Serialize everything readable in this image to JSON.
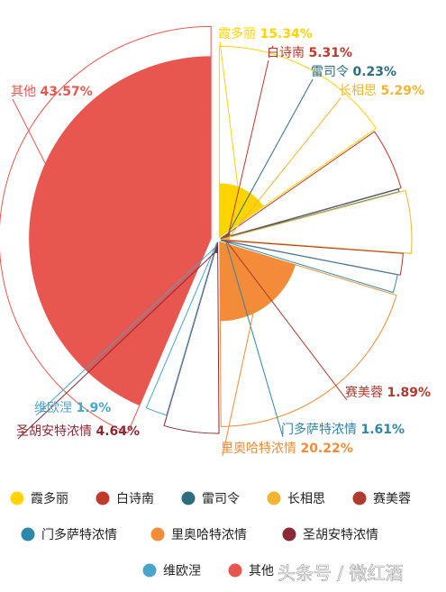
{
  "chart_data": {
    "type": "pie",
    "variant": "rose-with-exploded-outlines",
    "series": [
      {
        "name": "霞多丽",
        "label": "霞多丽",
        "pct_text": "15.34%",
        "value": 15.34,
        "color": "#FFD400"
      },
      {
        "name": "白诗南",
        "label": "白诗南",
        "pct_text": "5.31%",
        "value": 5.31,
        "color": "#C0392B"
      },
      {
        "name": "雷司令",
        "label": "雷司令",
        "pct_text": "0.23%",
        "value": 0.23,
        "color": "#2C6E80"
      },
      {
        "name": "长相思",
        "label": "长相思",
        "pct_text": "5.29%",
        "value": 5.29,
        "color": "#F2B531"
      },
      {
        "name": "赛美蓉",
        "label": "赛美蓉",
        "pct_text": "1.89%",
        "value": 1.89,
        "color": "#B03A2E"
      },
      {
        "name": "门多萨特浓情",
        "label": "门多萨特浓情",
        "pct_text": "1.61%",
        "value": 1.61,
        "color": "#2E86A8"
      },
      {
        "name": "里奥哈特浓情",
        "label": "里奥哈特浓情",
        "pct_text": "20.22%",
        "value": 20.22,
        "color": "#F28C38"
      },
      {
        "name": "圣胡安特浓情",
        "label": "圣胡安特浓情",
        "pct_text": "4.64%",
        "value": 4.64,
        "color": "#8B2A35"
      },
      {
        "name": "维欧涅",
        "label": "维欧涅",
        "pct_text": "1.9%",
        "value": 1.9,
        "color": "#4AA3C8"
      },
      {
        "name": "其他",
        "label": "其他",
        "pct_text": "43.57%",
        "value": 43.57,
        "color": "#E8574F"
      }
    ],
    "legend_position": "bottom",
    "legend": [
      "霞多丽",
      "白诗南",
      "雷司令",
      "长相思",
      "赛美蓉",
      "门多萨特浓情",
      "里奥哈特浓情",
      "圣胡安特浓情",
      "维欧涅",
      "其他"
    ]
  },
  "watermark": "头条号 / 微红酒"
}
